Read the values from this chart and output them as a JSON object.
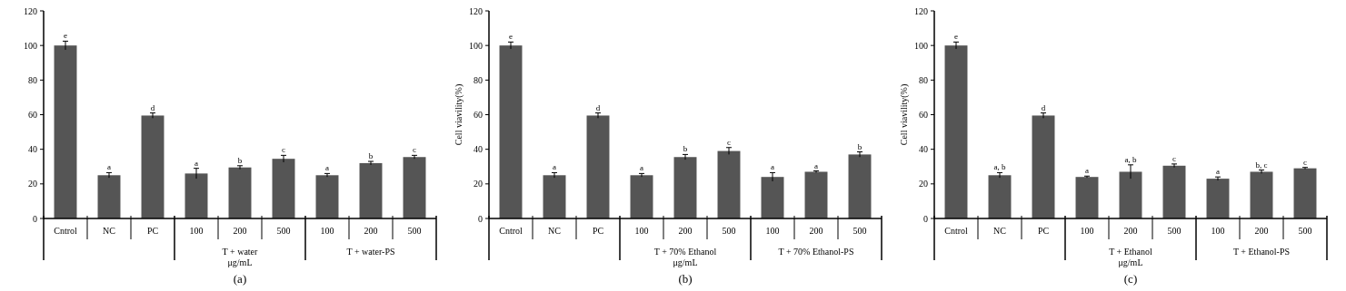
{
  "chart_data": [
    {
      "type": "bar",
      "title": "(a)",
      "categories": [
        "Cntrol",
        "NC",
        "PC",
        "100",
        "200",
        "500",
        "100",
        "200",
        "500"
      ],
      "values": [
        100,
        25,
        59.5,
        26,
        29.5,
        34.5,
        25,
        32,
        35.5
      ],
      "errors": [
        2.5,
        1.5,
        1.5,
        3,
        1,
        2,
        1,
        1,
        1
      ],
      "value_labels": [
        "e",
        "a",
        "d",
        "a",
        "b",
        "c",
        "a",
        "b",
        "c"
      ],
      "color": "#555555",
      "ylim": [
        0,
        120
      ],
      "yticks": [
        0,
        20,
        40,
        60,
        80,
        100,
        120
      ],
      "annotations": [
        "T + water\nμg/mL",
        "T + water-PS"
      ]
    },
    {
      "type": "bar",
      "title": "(b)",
      "ylabel": "Cell viavility(%)",
      "categories": [
        "Cntrol",
        "NC",
        "PC",
        "100",
        "200",
        "500",
        "100",
        "200",
        "500"
      ],
      "values": [
        100,
        25,
        59.5,
        25,
        35.5,
        39,
        24,
        27,
        37
      ],
      "errors": [
        2,
        1.5,
        1.5,
        1,
        1.5,
        2,
        2.5,
        0.5,
        1.5
      ],
      "value_labels": [
        "e",
        "a",
        "d",
        "a",
        "b",
        "c",
        "a",
        "a",
        "b"
      ],
      "color": "#555555",
      "ylim": [
        0,
        120
      ],
      "yticks": [
        0,
        20,
        40,
        60,
        80,
        100,
        120
      ],
      "annotations": [
        "T + 70% Ethanol\nμg/mL",
        "T + 70% Ethanol-PS"
      ]
    },
    {
      "type": "bar",
      "title": "(c)",
      "ylabel": "Cell viavility(%)",
      "categories": [
        "Cntrol",
        "NC",
        "PC",
        "100",
        "200",
        "500",
        "100",
        "200",
        "500"
      ],
      "values": [
        100,
        25,
        59.5,
        24,
        27,
        30.5,
        23,
        27,
        29
      ],
      "errors": [
        2,
        1.5,
        1.5,
        0.5,
        4,
        1,
        1,
        1,
        0.5
      ],
      "value_labels": [
        "e",
        "a, b",
        "d",
        "a",
        "a, b",
        "c",
        "a",
        "b, c",
        "c"
      ],
      "color": "#555555",
      "ylim": [
        0,
        120
      ],
      "yticks": [
        0,
        20,
        40,
        60,
        80,
        100,
        120
      ],
      "annotations": [
        "T + Ethanol\nμg/mL",
        "T + Ethanol-PS"
      ]
    }
  ]
}
